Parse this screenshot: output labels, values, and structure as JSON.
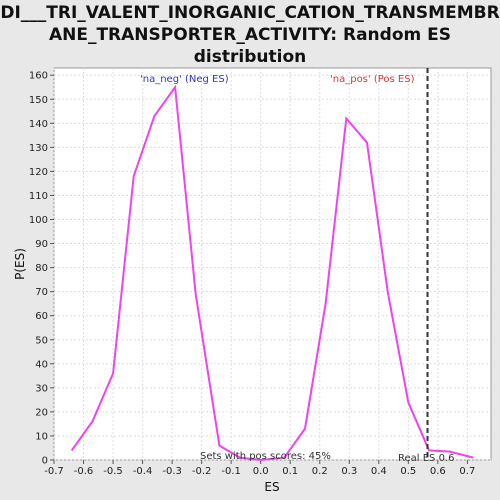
{
  "chart_data": {
    "type": "line",
    "title_lines": [
      "DI___TRI_VALENT_INORGANIC_CATION_TRANSMEMBR",
      "ANE_TRANSPORTER_ACTIVITY: Random ES",
      "distribution"
    ],
    "xlabel": "ES",
    "ylabel": "P(ES)",
    "xlim": [
      -0.7,
      0.78
    ],
    "ylim": [
      0,
      163
    ],
    "x_ticks": [
      -0.7,
      -0.6,
      -0.5,
      -0.4,
      -0.3,
      -0.2,
      -0.1,
      0.0,
      0.1,
      0.2,
      0.3,
      0.4,
      0.5,
      0.6,
      0.7
    ],
    "x_tick_labels": [
      "-0.7",
      "-0.6",
      "-0.5",
      "-0.4",
      "-0.3",
      "-0.2",
      "-0.1",
      "0.0",
      "0.1",
      "0.2",
      "0.3",
      "0.4",
      "0.5",
      "0.6",
      "0.7"
    ],
    "y_ticks": [
      0,
      10,
      20,
      30,
      40,
      50,
      60,
      70,
      80,
      90,
      100,
      110,
      120,
      130,
      140,
      150,
      160
    ],
    "y_tick_labels": [
      "0",
      "10",
      "20",
      "30",
      "40",
      "50",
      "60",
      "70",
      "80",
      "90",
      "100",
      "110",
      "120",
      "130",
      "140",
      "150",
      "160"
    ],
    "grid": true,
    "series": [
      {
        "color": "#ee44ee",
        "x": [
          -0.64,
          -0.57,
          -0.5,
          -0.43,
          -0.36,
          -0.29,
          -0.22,
          -0.14,
          -0.07,
          0.0,
          0.08,
          0.15,
          0.22,
          0.29,
          0.36,
          0.43,
          0.5,
          0.57,
          0.64,
          0.72
        ],
        "y": [
          4,
          16,
          36,
          118,
          143,
          155,
          69,
          6,
          1,
          0,
          1,
          13,
          65,
          142,
          132,
          70,
          24,
          4,
          3.5,
          1
        ]
      }
    ],
    "vline": {
      "x": 0.565,
      "color": "#333333"
    },
    "annotations": {
      "neg_label": "'na_neg' (Neg ES)",
      "pos_label": "'na_pos' (Pos ES)",
      "pos_scores": "Sets with pos scores: 45%",
      "real_es": "Real ES 0.6"
    },
    "colors": {
      "neg": "#3333cc",
      "pos": "#dd3333",
      "line": "#ee44ee"
    }
  }
}
